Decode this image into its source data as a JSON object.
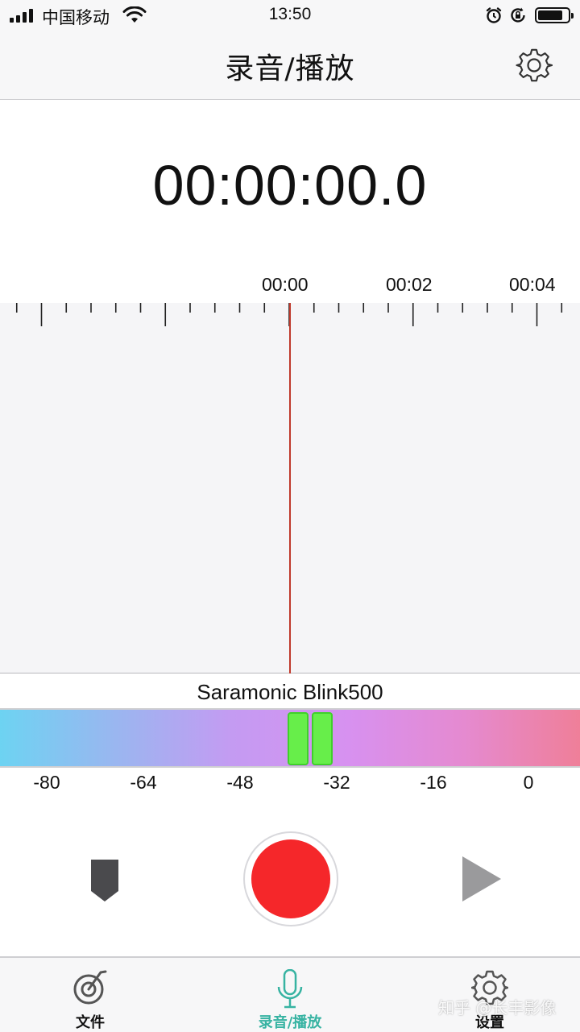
{
  "status_bar": {
    "carrier": "中国移动",
    "time": "13:50",
    "icons": [
      "signal-icon",
      "wifi-icon",
      "alarm-icon",
      "orientation-lock-icon",
      "battery-icon"
    ]
  },
  "nav": {
    "title": "录音/播放",
    "settings_icon": "gear-icon"
  },
  "timer": "00:00:00.0",
  "timeline": {
    "labels": [
      "00:00",
      "00:02",
      "00:04"
    ],
    "playhead_color": "#c0392b"
  },
  "device": {
    "name": "Saramonic Blink500"
  },
  "meter": {
    "scale_labels": [
      "-80",
      "-64",
      "-48",
      "-32",
      "-16",
      "0"
    ],
    "unit_range": [
      -80,
      0
    ],
    "left_channel_level": -38,
    "right_channel_level": -34,
    "peak_color": "#67ee4a"
  },
  "controls": {
    "marker_icon": "bookmark-icon",
    "record_icon": "record-icon",
    "play_icon": "play-icon",
    "record_color": "#f5272a"
  },
  "tab_bar": {
    "tabs": [
      {
        "label": "文件",
        "icon": "music-disc-icon",
        "active": false
      },
      {
        "label": "录音/播放",
        "icon": "microphone-icon",
        "active": true
      },
      {
        "label": "设置",
        "icon": "gear-icon",
        "active": false
      }
    ],
    "active_color": "#37b3a2"
  },
  "watermark": "知乎 @长丰影像"
}
